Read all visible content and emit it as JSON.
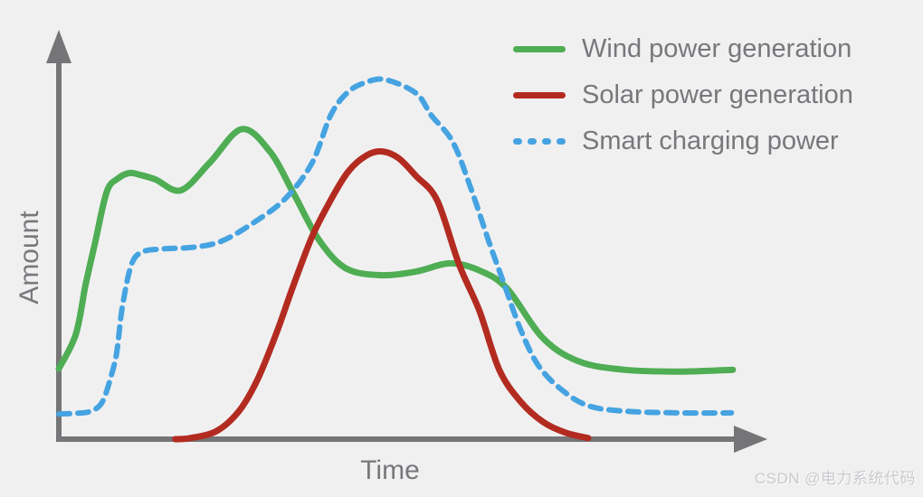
{
  "chart": {
    "ylabel": "Amount",
    "xlabel": "Time",
    "background_color": "#f0f0f1",
    "axis_color": "#757577",
    "text_color": "#77787b",
    "legend": [
      {
        "label": "Wind power generation",
        "series": "wind"
      },
      {
        "label": "Solar power generation",
        "series": "solar"
      },
      {
        "label": "Smart charging power",
        "series": "charging"
      }
    ]
  },
  "chart_data": {
    "type": "line",
    "title": "",
    "xlabel": "Time",
    "ylabel": "Amount",
    "axes_note": "no tick labels; arbitrary units, x 0-100 (time), y 0-100 (amount, smart-charging peak = 100)",
    "xlim": [
      0,
      100
    ],
    "ylim": [
      0,
      110
    ],
    "grid": false,
    "legend_position": "top-right",
    "series": [
      {
        "name": "Wind power generation",
        "id": "wind",
        "color": "#4fad53",
        "line_style": "solid",
        "points": [
          [
            0,
            19.6
          ],
          [
            2.4,
            29.1
          ],
          [
            3.8,
            43
          ],
          [
            5.1,
            54.3
          ],
          [
            6.8,
            68.8
          ],
          [
            8.4,
            72.5
          ],
          [
            10,
            74
          ],
          [
            11.5,
            73.5
          ],
          [
            13.7,
            72.2
          ],
          [
            17.3,
            69.2
          ],
          [
            21.4,
            76.9
          ],
          [
            25.9,
            86.2
          ],
          [
            29.9,
            80
          ],
          [
            33.3,
            68.2
          ],
          [
            36.8,
            55.6
          ],
          [
            40.6,
            47.6
          ],
          [
            45.5,
            45.6
          ],
          [
            50.6,
            46.6
          ],
          [
            55.4,
            48.9
          ],
          [
            59.6,
            46.9
          ],
          [
            63.5,
            41.9
          ],
          [
            68.6,
            28.1
          ],
          [
            73.7,
            21.6
          ],
          [
            80.1,
            19.3
          ],
          [
            87.8,
            18.8
          ],
          [
            95.5,
            19.3
          ]
        ]
      },
      {
        "name": "Solar power generation",
        "id": "solar",
        "color": "#b32b20",
        "line_style": "solid",
        "points": [
          [
            16.5,
            0
          ],
          [
            18.6,
            0.3
          ],
          [
            22.4,
            2.3
          ],
          [
            25.6,
            8
          ],
          [
            28.2,
            16.8
          ],
          [
            30.8,
            29.3
          ],
          [
            33.3,
            43.1
          ],
          [
            35.9,
            56.4
          ],
          [
            38.5,
            66.4
          ],
          [
            41,
            74.4
          ],
          [
            43.6,
            78.9
          ],
          [
            45.8,
            80
          ],
          [
            48.1,
            78.2
          ],
          [
            50.6,
            73.2
          ],
          [
            53.6,
            66.4
          ],
          [
            56.7,
            48.6
          ],
          [
            59.6,
            35.6
          ],
          [
            62.4,
            19.3
          ],
          [
            65.4,
            10.5
          ],
          [
            68.6,
            4.8
          ],
          [
            71.8,
            1.8
          ],
          [
            75,
            0.3
          ]
        ]
      },
      {
        "name": "Smart charging power",
        "id": "charging",
        "color": "#45a3e1",
        "line_style": "dashed",
        "points": [
          [
            0,
            7
          ],
          [
            2.6,
            7.2
          ],
          [
            4.5,
            7.8
          ],
          [
            6.2,
            10.5
          ],
          [
            7.7,
            19.6
          ],
          [
            8.3,
            25.4
          ],
          [
            9,
            36.8
          ],
          [
            10.3,
            48.6
          ],
          [
            11.9,
            52.1
          ],
          [
            14.7,
            52.9
          ],
          [
            19.2,
            53.4
          ],
          [
            23.1,
            55.1
          ],
          [
            27.6,
            60.2
          ],
          [
            32.1,
            66.9
          ],
          [
            35.9,
            76.9
          ],
          [
            38.5,
            90
          ],
          [
            40.8,
            96.2
          ],
          [
            43.2,
            99
          ],
          [
            46.2,
            100
          ],
          [
            50.6,
            96.2
          ],
          [
            52.8,
            90
          ],
          [
            55.8,
            82.7
          ],
          [
            58.3,
            70.2
          ],
          [
            60.9,
            55.1
          ],
          [
            63.1,
            43.1
          ],
          [
            65.4,
            30.6
          ],
          [
            67.9,
            20.6
          ],
          [
            71.2,
            13.8
          ],
          [
            75,
            9.3
          ],
          [
            80.1,
            7.8
          ],
          [
            87.8,
            7.3
          ],
          [
            95.3,
            7.3
          ]
        ]
      }
    ]
  },
  "watermark": {
    "text": "CSDN @电力系统代码",
    "color": "#c9cacd"
  }
}
